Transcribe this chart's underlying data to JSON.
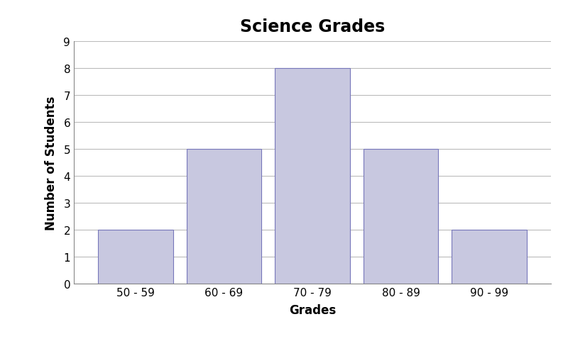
{
  "title": "Science Grades",
  "xlabel": "Grades",
  "ylabel": "Number of Students",
  "categories": [
    "50 - 59",
    "60 - 69",
    "70 - 79",
    "80 - 89",
    "90 - 99"
  ],
  "values": [
    2,
    5,
    8,
    5,
    2
  ],
  "bar_color": "#c8c8e0",
  "bar_edge_color": "#7777bb",
  "ylim": [
    0,
    9
  ],
  "yticks": [
    0,
    1,
    2,
    3,
    4,
    5,
    6,
    7,
    8,
    9
  ],
  "title_fontsize": 17,
  "title_fontweight": "bold",
  "axis_label_fontsize": 12,
  "axis_label_fontweight": "bold",
  "tick_fontsize": 11,
  "background_color": "#ffffff",
  "grid_color": "#bbbbbb",
  "bar_linewidth": 0.8,
  "figsize": [
    8.0,
    4.89
  ],
  "dpi": 100
}
